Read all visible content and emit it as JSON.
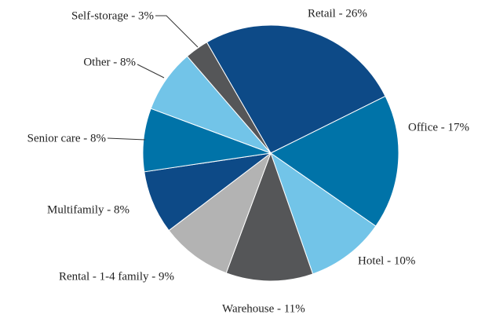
{
  "chart_data": {
    "type": "pie",
    "categories": [
      "Retail - 26%",
      "Office - 17%",
      "Hotel - 10%",
      "Warehouse - 11%",
      "Rental - 1-4 family - 9%",
      "Multifamily - 8%",
      "Senior care - 8%",
      "Other - 8%",
      "Self-storage - 3%"
    ],
    "values": [
      26,
      17,
      10,
      11,
      9,
      8,
      8,
      8,
      3
    ],
    "colors": [
      "#0d4a87",
      "#0073a8",
      "#72c4e8",
      "#555658",
      "#b3b3b3",
      "#0d4a87",
      "#0073a8",
      "#72c4e8",
      "#555658"
    ]
  }
}
